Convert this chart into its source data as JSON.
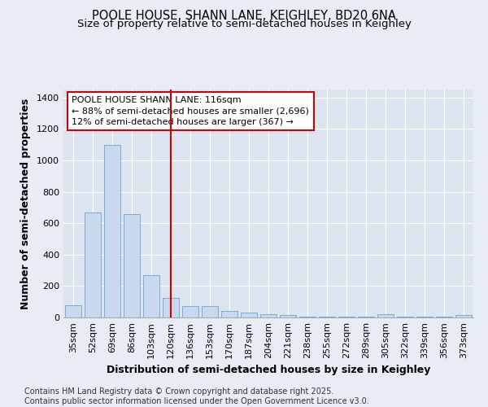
{
  "title_line1": "POOLE HOUSE, SHANN LANE, KEIGHLEY, BD20 6NA",
  "title_line2": "Size of property relative to semi-detached houses in Keighley",
  "xlabel": "Distribution of semi-detached houses by size in Keighley",
  "ylabel": "Number of semi-detached properties",
  "annotation_line1": "POOLE HOUSE SHANN LANE: 116sqm",
  "annotation_line2": "← 88% of semi-detached houses are smaller (2,696)",
  "annotation_line3": "12% of semi-detached houses are larger (367) →",
  "footer_line1": "Contains HM Land Registry data © Crown copyright and database right 2025.",
  "footer_line2": "Contains public sector information licensed under the Open Government Licence v3.0.",
  "categories": [
    "35sqm",
    "52sqm",
    "69sqm",
    "86sqm",
    "103sqm",
    "120sqm",
    "136sqm",
    "153sqm",
    "170sqm",
    "187sqm",
    "204sqm",
    "221sqm",
    "238sqm",
    "255sqm",
    "272sqm",
    "289sqm",
    "305sqm",
    "322sqm",
    "339sqm",
    "356sqm",
    "373sqm"
  ],
  "values": [
    80,
    670,
    1100,
    660,
    270,
    125,
    75,
    75,
    40,
    30,
    20,
    15,
    5,
    5,
    5,
    5,
    20,
    5,
    5,
    5,
    15
  ],
  "bar_color": "#c8d8ee",
  "bar_edge_color": "#7aaad4",
  "vline_color": "#cc0000",
  "vline_index": 5,
  "ylim": [
    0,
    1450
  ],
  "yticks": [
    0,
    200,
    400,
    600,
    800,
    1000,
    1200,
    1400
  ],
  "bg_color": "#e8ecf4",
  "plot_bg_color": "#dce4ef",
  "grid_color": "#ffffff",
  "title_fontsize": 10.5,
  "subtitle_fontsize": 9.5,
  "axis_label_fontsize": 9,
  "tick_fontsize": 8,
  "footer_fontsize": 7
}
